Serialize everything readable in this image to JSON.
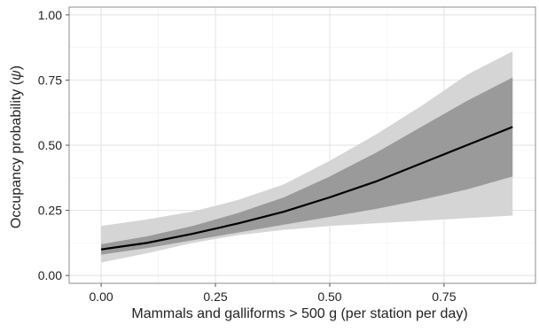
{
  "chart_data": {
    "type": "line",
    "title": "",
    "xlabel": "Mammals and galliforms > 500 g (per station per day)",
    "ylabel_main": "Occupancy probability (",
    "ylabel_symbol": "ψ",
    "ylabel_close": ")",
    "xlim": [
      -0.07,
      0.95
    ],
    "ylim": [
      -0.03,
      1.03
    ],
    "x_ticks": [
      0.0,
      0.25,
      0.5,
      0.75
    ],
    "x_tick_labels": [
      "0.00",
      "0.25",
      "0.50",
      "0.75"
    ],
    "y_ticks": [
      0.0,
      0.25,
      0.5,
      0.75,
      1.0
    ],
    "y_tick_labels": [
      "0.00",
      "0.25",
      "0.50",
      "0.75",
      "1.00"
    ],
    "grid": true,
    "legend": "none",
    "x": [
      0.0,
      0.1,
      0.2,
      0.3,
      0.4,
      0.5,
      0.6,
      0.7,
      0.8,
      0.9
    ],
    "series": [
      {
        "role": "mean",
        "values": [
          0.1,
          0.125,
          0.16,
          0.2,
          0.245,
          0.3,
          0.36,
          0.43,
          0.5,
          0.57
        ],
        "color": "#000000"
      },
      {
        "role": "inner-band",
        "lower": [
          0.08,
          0.105,
          0.135,
          0.165,
          0.195,
          0.225,
          0.255,
          0.29,
          0.33,
          0.38
        ],
        "upper": [
          0.12,
          0.15,
          0.19,
          0.24,
          0.3,
          0.38,
          0.47,
          0.57,
          0.67,
          0.76
        ],
        "color": "#9a9a9a"
      },
      {
        "role": "outer-band",
        "lower": [
          0.05,
          0.085,
          0.125,
          0.155,
          0.175,
          0.19,
          0.2,
          0.21,
          0.22,
          0.23
        ],
        "upper": [
          0.19,
          0.215,
          0.245,
          0.29,
          0.35,
          0.44,
          0.54,
          0.65,
          0.77,
          0.86
        ],
        "color": "#d5d5d5"
      }
    ]
  }
}
